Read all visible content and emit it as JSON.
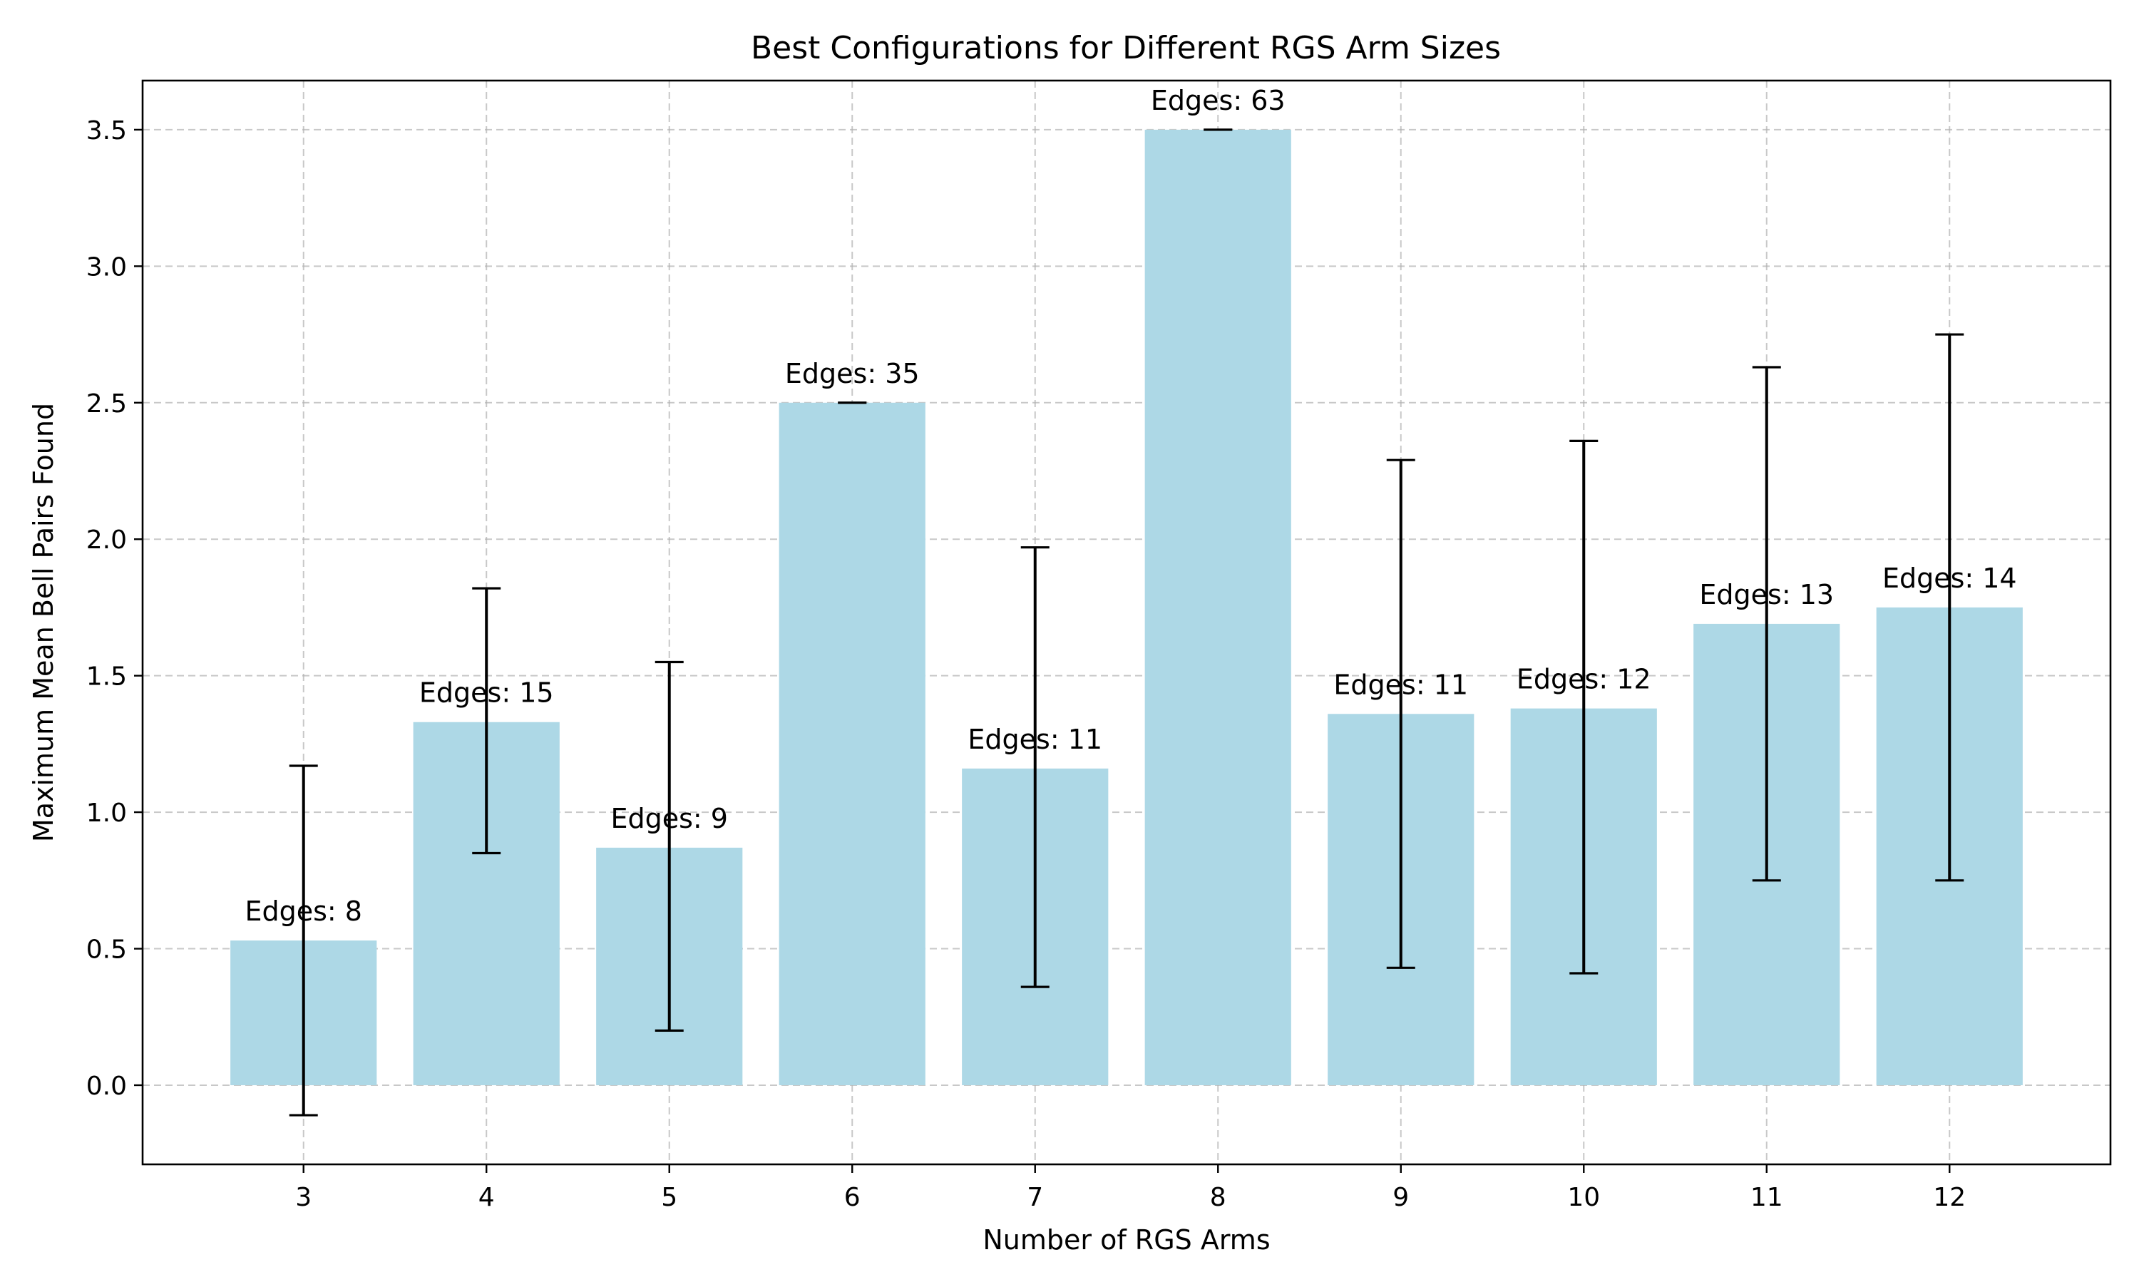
{
  "chart_data": {
    "type": "bar",
    "title": "Best Configurations for Different RGS Arm Sizes",
    "xlabel": "Number of RGS Arms",
    "ylabel": "Maximum Mean Bell Pairs Found",
    "categories": [
      "3",
      "4",
      "5",
      "6",
      "7",
      "8",
      "9",
      "10",
      "11",
      "12"
    ],
    "values": [
      0.53,
      1.33,
      0.87,
      2.5,
      1.16,
      3.5,
      1.36,
      1.38,
      1.69,
      1.75
    ],
    "error_low": [
      -0.11,
      0.85,
      0.2,
      2.5,
      0.36,
      3.5,
      0.43,
      0.41,
      0.75,
      0.75
    ],
    "error_high": [
      1.17,
      1.82,
      1.55,
      2.5,
      1.97,
      3.5,
      2.29,
      2.36,
      2.63,
      2.75
    ],
    "bar_labels": [
      "Edges: 8",
      "Edges: 15",
      "Edges: 9",
      "Edges: 35",
      "Edges: 11",
      "Edges: 63",
      "Edges: 11",
      "Edges: 12",
      "Edges: 13",
      "Edges: 14"
    ],
    "y_ticks": [
      0.0,
      0.5,
      1.0,
      1.5,
      2.0,
      2.5,
      3.0,
      3.5
    ],
    "y_tick_labels": [
      "0.0",
      "0.5",
      "1.0",
      "1.5",
      "2.0",
      "2.5",
      "3.0",
      "3.5"
    ],
    "ylim": [
      -0.29,
      3.68
    ],
    "grid": true,
    "colors": {
      "bar": "#ADD8E6",
      "error_bar": "#000000",
      "grid": "#b0b0b0"
    }
  }
}
